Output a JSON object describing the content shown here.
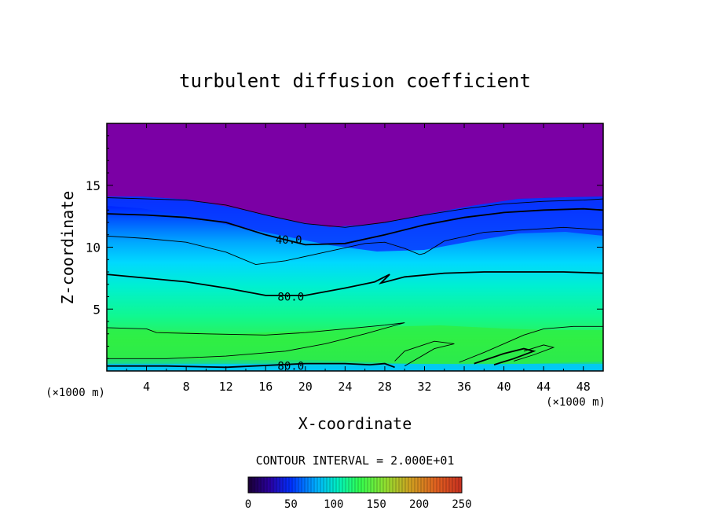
{
  "chart_data": {
    "type": "heatmap",
    "title": "turbulent diffusion coefficient",
    "xlabel": "X-coordinate",
    "ylabel": "Z-coordinate",
    "x_unit_left": "(×1000 m)",
    "x_unit_right": "(×1000 m)",
    "xlim": [
      0,
      50
    ],
    "ylim": [
      0,
      20
    ],
    "x_ticks": [
      "4",
      "8",
      "12",
      "16",
      "20",
      "24",
      "28",
      "32",
      "36",
      "40",
      "44",
      "48"
    ],
    "y_ticks": [
      "5",
      "10",
      "15"
    ],
    "contour_interval_label": "CONTOUR INTERVAL = 2.000E+01",
    "contour_labels": [
      {
        "text": "40.0",
        "x": 17.0,
        "y": 10.6
      },
      {
        "text": "80.0",
        "x": 17.2,
        "y": 6.0
      },
      {
        "text": "80.0",
        "x": 17.2,
        "y": 0.4
      }
    ],
    "colorbar": {
      "min": 0,
      "max": 250,
      "ticks": [
        "0",
        "50",
        "100",
        "150",
        "200",
        "250"
      ],
      "colors": [
        "#1a0033",
        "#2a00a0",
        "#0030ff",
        "#00b0ff",
        "#00f0c0",
        "#30ff50",
        "#90e030",
        "#d0a020",
        "#e06020",
        "#c83020"
      ]
    },
    "contours": [
      {
        "level": 20,
        "points": [
          [
            0,
            14.0
          ],
          [
            4,
            13.9
          ],
          [
            8,
            13.8
          ],
          [
            12,
            13.4
          ],
          [
            16,
            12.6
          ],
          [
            20,
            11.9
          ],
          [
            24,
            11.6
          ],
          [
            28,
            12.0
          ],
          [
            32,
            12.6
          ],
          [
            36,
            13.1
          ],
          [
            40,
            13.5
          ],
          [
            44,
            13.7
          ],
          [
            48,
            13.8
          ],
          [
            50,
            13.9
          ]
        ]
      },
      {
        "level": 40,
        "points": [
          [
            0,
            12.7
          ],
          [
            4,
            12.6
          ],
          [
            8,
            12.4
          ],
          [
            12,
            12.0
          ],
          [
            16,
            11.0
          ],
          [
            20,
            10.2
          ],
          [
            24,
            10.3
          ],
          [
            28,
            11.0
          ],
          [
            32,
            11.8
          ],
          [
            36,
            12.4
          ],
          [
            40,
            12.8
          ],
          [
            44,
            13.0
          ],
          [
            48,
            13.1
          ],
          [
            50,
            13.0
          ]
        ]
      },
      {
        "level": 60,
        "points": [
          [
            0,
            10.9
          ],
          [
            4,
            10.7
          ],
          [
            8,
            10.4
          ],
          [
            12,
            9.6
          ],
          [
            15,
            8.6
          ],
          [
            18,
            8.9
          ],
          [
            22,
            9.6
          ],
          [
            26,
            10.3
          ],
          [
            28,
            10.4
          ],
          [
            30,
            9.9
          ],
          [
            31.5,
            9.4
          ],
          [
            32,
            9.5
          ],
          [
            34,
            10.5
          ],
          [
            38,
            11.2
          ],
          [
            42,
            11.4
          ],
          [
            46,
            11.6
          ],
          [
            48,
            11.5
          ],
          [
            50,
            11.4
          ]
        ]
      },
      {
        "level": 80,
        "points": [
          [
            0,
            7.8
          ],
          [
            4,
            7.5
          ],
          [
            8,
            7.2
          ],
          [
            12,
            6.7
          ],
          [
            16,
            6.1
          ],
          [
            20,
            6.1
          ],
          [
            24,
            6.7
          ],
          [
            27,
            7.2
          ],
          [
            28.5,
            7.8
          ],
          [
            27.6,
            7.1
          ],
          [
            30,
            7.6
          ],
          [
            34,
            7.9
          ],
          [
            38,
            8.0
          ],
          [
            42,
            8.0
          ],
          [
            46,
            8.0
          ],
          [
            50,
            7.9
          ]
        ]
      },
      {
        "level": 100,
        "points": [
          [
            0,
            3.5
          ],
          [
            4,
            3.4
          ],
          [
            5,
            3.1
          ],
          [
            10,
            3.0
          ],
          [
            16,
            2.9
          ],
          [
            20,
            3.1
          ],
          [
            24,
            3.4
          ],
          [
            28,
            3.7
          ],
          [
            30,
            3.9
          ],
          [
            26,
            3.0
          ],
          [
            22,
            2.2
          ],
          [
            18,
            1.6
          ],
          [
            12,
            1.2
          ],
          [
            6,
            1.0
          ],
          [
            0,
            1.0
          ]
        ]
      },
      {
        "level": 80,
        "points": [
          [
            0,
            0.4
          ],
          [
            6,
            0.4
          ],
          [
            12,
            0.3
          ],
          [
            20,
            0.6
          ],
          [
            24,
            0.6
          ],
          [
            26.5,
            0.5
          ],
          [
            28,
            0.6
          ],
          [
            29,
            0.3
          ]
        ]
      },
      {
        "level": 100,
        "points": [
          [
            30,
            0.4
          ],
          [
            33,
            1.8
          ],
          [
            35,
            2.2
          ],
          [
            33,
            2.4
          ],
          [
            30,
            1.6
          ],
          [
            29,
            0.8
          ]
        ]
      },
      {
        "level": 100,
        "points": [
          [
            35.5,
            0.7
          ],
          [
            38,
            1.5
          ],
          [
            40,
            2.2
          ],
          [
            42,
            2.9
          ],
          [
            44,
            3.4
          ],
          [
            47,
            3.6
          ],
          [
            50,
            3.6
          ]
        ]
      },
      {
        "level": 120,
        "points": [
          [
            37,
            0.6
          ],
          [
            40,
            1.4
          ],
          [
            42,
            1.8
          ],
          [
            43,
            1.6
          ],
          [
            41,
            1.0
          ],
          [
            39,
            0.5
          ]
        ]
      },
      {
        "level": 100,
        "points": [
          [
            41,
            0.8
          ],
          [
            43,
            1.3
          ],
          [
            45,
            1.9
          ],
          [
            44,
            2.1
          ],
          [
            42,
            1.6
          ]
        ]
      }
    ]
  }
}
